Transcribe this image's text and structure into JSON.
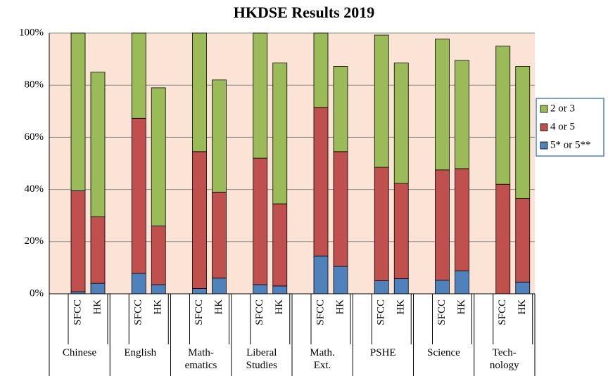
{
  "chart_data": {
    "type": "stacked_bar",
    "title": "HKDSE Results 2019",
    "groups": [
      "Chinese",
      "English",
      "Math-\nematics",
      "Liberal\nStudies",
      "Math.\nExt.",
      "PSHE",
      "Science",
      "Tech-\nnology"
    ],
    "categories": [
      "SFCC",
      "HK",
      "SFCC",
      "HK",
      "SFCC",
      "HK",
      "SFCC",
      "HK",
      "SFCC",
      "HK",
      "SFCC",
      "HK",
      "SFCC",
      "HK",
      "SFCC",
      "HK"
    ],
    "series": [
      {
        "name": "5* or 5**",
        "color": "#4f81bd",
        "values": [
          0.8,
          4,
          7.8,
          3.5,
          2,
          6,
          3.5,
          3,
          14.5,
          10.5,
          5,
          5.8,
          5.2,
          8.8,
          0,
          4.5
        ]
      },
      {
        "name": "4 or 5",
        "color": "#c0504d",
        "values": [
          38.7,
          25.5,
          59.5,
          22.5,
          52.5,
          33,
          48.5,
          31.5,
          57,
          44,
          43.5,
          36.5,
          42.3,
          39.2,
          42,
          32
        ]
      },
      {
        "name": "2 or 3",
        "color": "#9bbb59",
        "values": [
          60.5,
          55.5,
          32.7,
          53,
          45.5,
          43,
          48,
          54,
          28.5,
          32.7,
          50.7,
          46.2,
          50.2,
          41.5,
          53,
          50.7
        ]
      }
    ],
    "ylim": [
      0,
      100
    ],
    "yticks": [
      {
        "value": 0,
        "label": "0%"
      },
      {
        "value": 20,
        "label": "20%"
      },
      {
        "value": 40,
        "label": "40%"
      },
      {
        "value": 60,
        "label": "60%"
      },
      {
        "value": 80,
        "label": "80%"
      },
      {
        "value": 100,
        "label": "100%"
      }
    ],
    "grid": true,
    "legend": "right"
  }
}
